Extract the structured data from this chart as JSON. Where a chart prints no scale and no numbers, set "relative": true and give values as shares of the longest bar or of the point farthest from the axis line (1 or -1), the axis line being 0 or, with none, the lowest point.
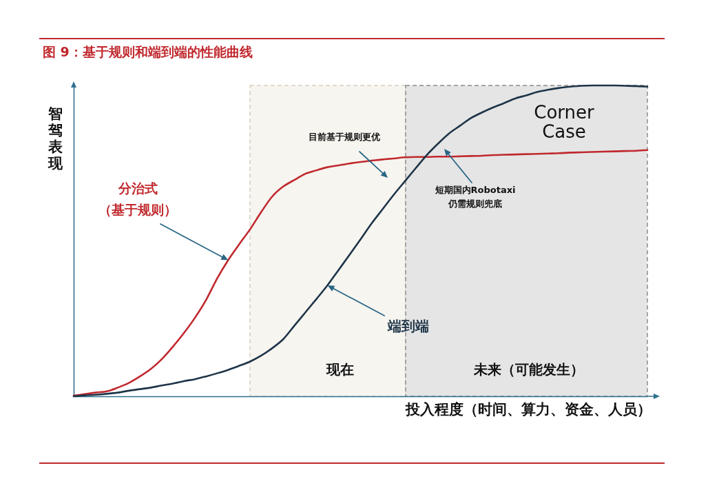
{
  "chart_data": {
    "type": "line",
    "title": "图 9：基于规则和端到端的性能曲线",
    "xlabel": "投入程度（时间、算力、资金、人员）",
    "ylabel": "智驾表现",
    "relative": true,
    "categories": [
      null,
      null,
      null,
      null,
      null,
      null,
      null,
      null,
      null,
      null,
      null,
      null,
      null,
      null,
      null,
      null,
      null,
      null,
      null,
      null,
      null,
      null,
      null,
      null,
      null,
      null,
      null,
      null,
      null,
      null,
      null,
      null,
      null,
      null,
      null,
      null,
      null,
      null,
      null,
      null,
      null,
      null,
      null,
      null,
      null,
      null,
      null,
      null,
      null,
      null,
      null,
      null,
      null
    ],
    "series": [
      {
        "name": "分治式（基于规则）",
        "color": "#c0282d",
        "values": [
          0.002,
          0.007,
          0.012,
          0.016,
          0.028,
          0.043,
          0.064,
          0.088,
          0.12,
          0.16,
          0.204,
          0.253,
          0.31,
          0.379,
          0.438,
          0.489,
          0.538,
          0.593,
          0.643,
          0.675,
          0.696,
          0.716,
          0.727,
          0.737,
          0.743,
          0.749,
          0.754,
          0.758,
          0.762,
          0.765,
          0.769,
          0.77,
          0.77,
          0.771,
          0.771,
          0.772,
          0.773,
          0.774,
          0.776,
          0.777,
          0.778,
          0.779,
          0.78,
          0.781,
          0.782,
          0.784,
          0.785,
          0.786,
          0.787,
          0.788,
          0.789,
          0.79,
          0.792
        ]
      },
      {
        "name": "端到端",
        "color": "#1e3448",
        "values": [
          0,
          0.003,
          0.005,
          0.008,
          0.012,
          0.018,
          0.023,
          0.028,
          0.035,
          0.041,
          0.049,
          0.055,
          0.064,
          0.074,
          0.085,
          0.098,
          0.112,
          0.131,
          0.155,
          0.184,
          0.227,
          0.27,
          0.313,
          0.357,
          0.406,
          0.455,
          0.505,
          0.556,
          0.602,
          0.648,
          0.691,
          0.734,
          0.776,
          0.812,
          0.845,
          0.87,
          0.895,
          0.913,
          0.929,
          0.943,
          0.958,
          0.968,
          0.979,
          0.986,
          0.992,
          0.996,
          0.999,
          1,
          1,
          1,
          0.999,
          0.998,
          0.996
        ]
      }
    ],
    "annotations": [
      "目前基于规则更优",
      "短期国内Robotaxi仍需规则兜底",
      "Corner Case",
      "现在",
      "未来（可能发生）"
    ]
  }
}
